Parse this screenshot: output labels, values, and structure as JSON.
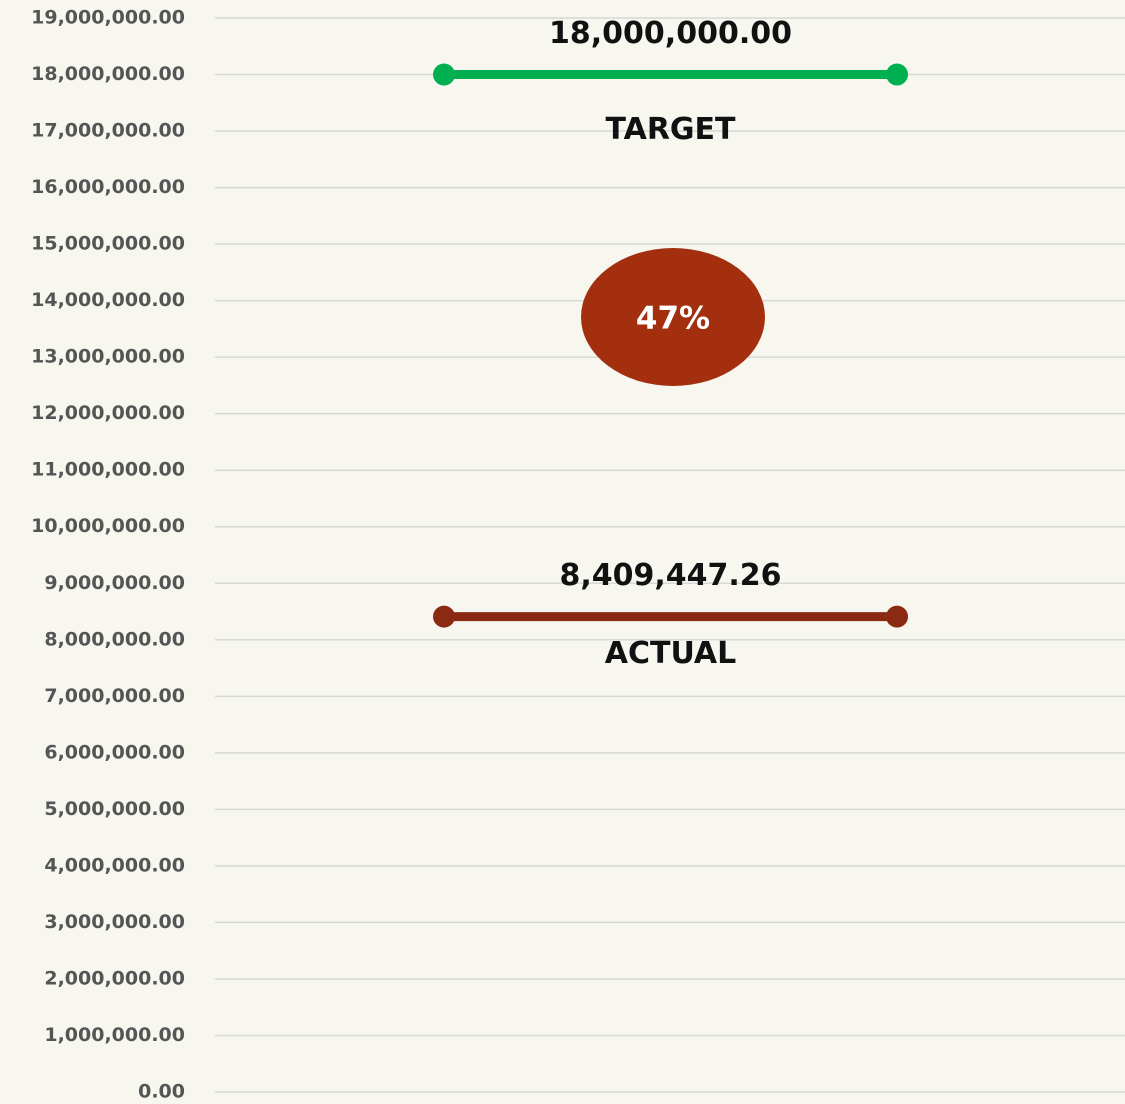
{
  "chart_data": {
    "type": "line",
    "ylim": [
      0,
      19000000
    ],
    "yticks": [
      {
        "value": 0,
        "label": "0.00"
      },
      {
        "value": 1000000,
        "label": "1,000,000.00"
      },
      {
        "value": 2000000,
        "label": "2,000,000.00"
      },
      {
        "value": 3000000,
        "label": "3,000,000.00"
      },
      {
        "value": 4000000,
        "label": "4,000,000.00"
      },
      {
        "value": 5000000,
        "label": "5,000,000.00"
      },
      {
        "value": 6000000,
        "label": "6,000,000.00"
      },
      {
        "value": 7000000,
        "label": "7,000,000.00"
      },
      {
        "value": 8000000,
        "label": "8,000,000.00"
      },
      {
        "value": 9000000,
        "label": "9,000,000.00"
      },
      {
        "value": 10000000,
        "label": "10,000,000.00"
      },
      {
        "value": 11000000,
        "label": "11,000,000.00"
      },
      {
        "value": 12000000,
        "label": "12,000,000.00"
      },
      {
        "value": 13000000,
        "label": "13,000,000.00"
      },
      {
        "value": 14000000,
        "label": "14,000,000.00"
      },
      {
        "value": 15000000,
        "label": "15,000,000.00"
      },
      {
        "value": 16000000,
        "label": "16,000,000.00"
      },
      {
        "value": 17000000,
        "label": "17,000,000.00"
      },
      {
        "value": 18000000,
        "label": "18,000,000.00"
      },
      {
        "value": 19000000,
        "label": "19,000,000.00"
      }
    ],
    "grid": true,
    "series": [
      {
        "name": "TARGET",
        "color": "#00b050",
        "values": [
          18000000
        ],
        "value_labels": [
          "18,000,000.00"
        ]
      },
      {
        "name": "ACTUAL",
        "color": "#8b2a12",
        "values": [
          8409447.26
        ],
        "value_labels": [
          "8,409,447.26"
        ]
      }
    ],
    "annotation": {
      "value": 47,
      "label": "47%",
      "color": "#a32f0f"
    }
  }
}
